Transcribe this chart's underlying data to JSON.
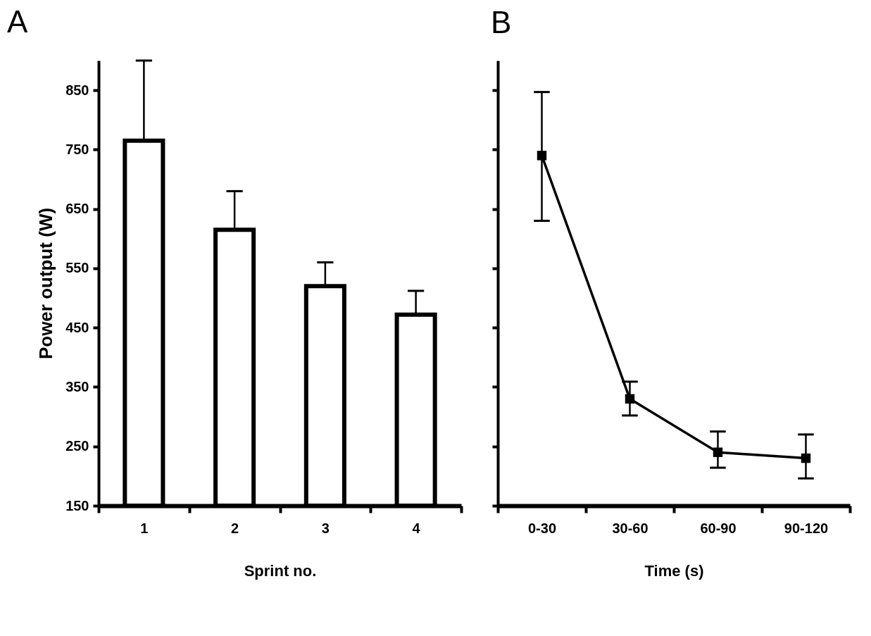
{
  "chart_data": [
    {
      "type": "bar",
      "title": "A",
      "xlabel": "Sprint no.",
      "ylabel": "Power output (W)",
      "categories": [
        "1",
        "2",
        "3",
        "4"
      ],
      "values": [
        765,
        615,
        520,
        472
      ],
      "color": "#ffffff",
      "errors": [
        [
          765,
          900
        ],
        [
          615,
          680
        ],
        [
          520,
          560
        ],
        [
          472,
          512
        ]
      ],
      "ylim": [
        150,
        900
      ],
      "yticks": [
        150,
        250,
        350,
        450,
        550,
        650,
        750,
        850
      ]
    },
    {
      "type": "line",
      "title": "B",
      "xlabel": "Time (s)",
      "categories": [
        "0-30",
        "30-60",
        "60-90",
        "90-120"
      ],
      "series": [
        {
          "color": "#000000",
          "values": [
            740,
            330,
            240,
            230
          ],
          "errors": [
            [
              630,
              847
            ],
            [
              302,
              359
            ],
            [
              214,
              275
            ],
            [
              196,
              270
            ]
          ]
        }
      ],
      "marker": "square",
      "ylim": [
        150,
        900
      ],
      "yticks": [
        150,
        250,
        350,
        450,
        550,
        650,
        750,
        850
      ],
      "tick_labels": "x"
    }
  ]
}
